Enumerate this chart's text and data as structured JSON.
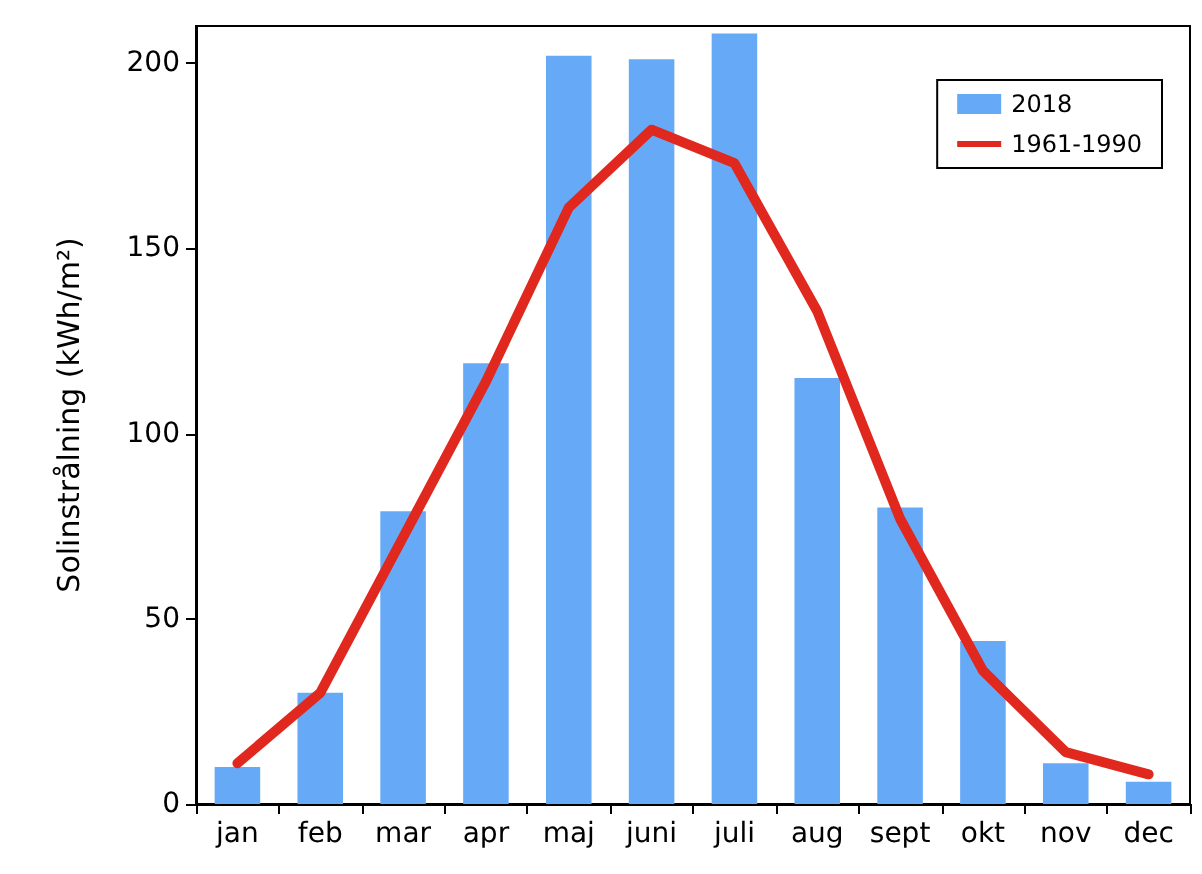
{
  "chart_data": {
    "type": "bar",
    "ylabel": "Solinstrålning (kWh/m²)",
    "categories": [
      "jan",
      "feb",
      "mar",
      "apr",
      "maj",
      "juni",
      "juli",
      "aug",
      "sept",
      "okt",
      "nov",
      "dec"
    ],
    "series": [
      {
        "name": "2018",
        "color": "#66aaf7",
        "values": [
          10,
          30,
          79,
          119,
          202,
          201,
          208,
          115,
          80,
          44,
          11,
          6
        ]
      },
      {
        "name": "1961-1990",
        "type": "line",
        "color": "#e0281e",
        "values": [
          11,
          30,
          72,
          114,
          161,
          182,
          173,
          133,
          77,
          36,
          14,
          8
        ]
      }
    ],
    "ylim": [
      0,
      210
    ],
    "yticks": [
      0,
      50,
      100,
      150,
      200
    ],
    "grid": false,
    "legend": "top right",
    "marker": "none",
    "line_style": "solid"
  }
}
